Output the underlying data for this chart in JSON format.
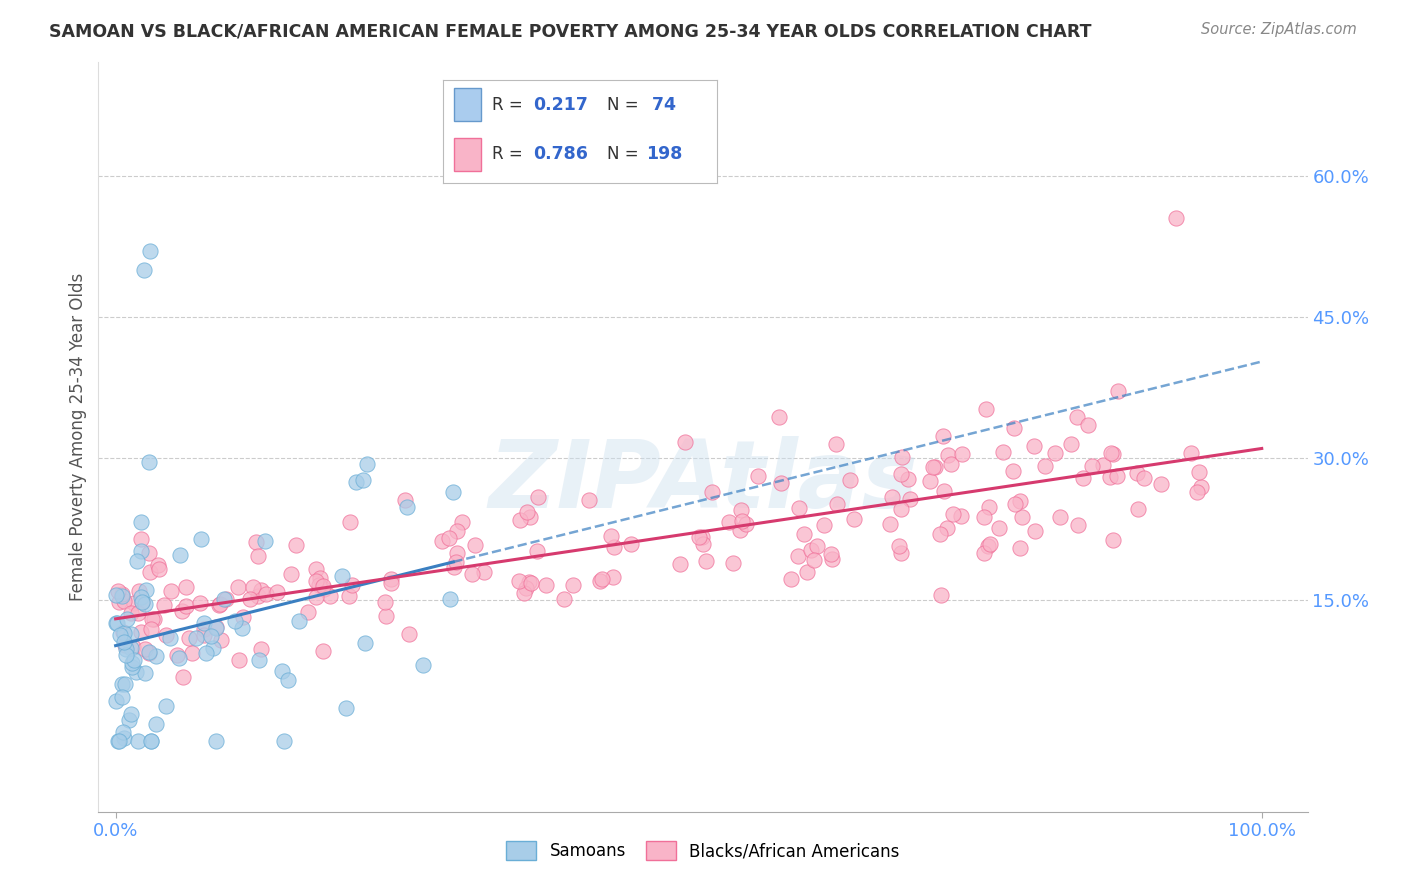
{
  "title": "SAMOAN VS BLACK/AFRICAN AMERICAN FEMALE POVERTY AMONG 25-34 YEAR OLDS CORRELATION CHART",
  "source": "Source: ZipAtlas.com",
  "ylabel": "Female Poverty Among 25-34 Year Olds",
  "ytick_positions": [
    0.15,
    0.3,
    0.45,
    0.6
  ],
  "ytick_labels": [
    "15.0%",
    "30.0%",
    "45.0%",
    "60.0%"
  ],
  "xtick_positions": [
    0.0,
    1.0
  ],
  "xtick_labels": [
    "0.0%",
    "100.0%"
  ],
  "watermark": "ZIPAtlas",
  "legend_R1": "0.217",
  "legend_N1": "74",
  "legend_R2": "0.786",
  "legend_N2": "198",
  "samoan_color": "#a8cde8",
  "samoan_edge": "#6aaed6",
  "black_color": "#f9b4c8",
  "black_edge": "#f07099",
  "trend_samoan_color": "#3a7fc1",
  "trend_black_color": "#d63a6e",
  "background_color": "#ffffff",
  "grid_color": "#cccccc",
  "tick_color": "#5599ff",
  "title_color": "#333333",
  "source_color": "#888888",
  "ylabel_color": "#555555"
}
